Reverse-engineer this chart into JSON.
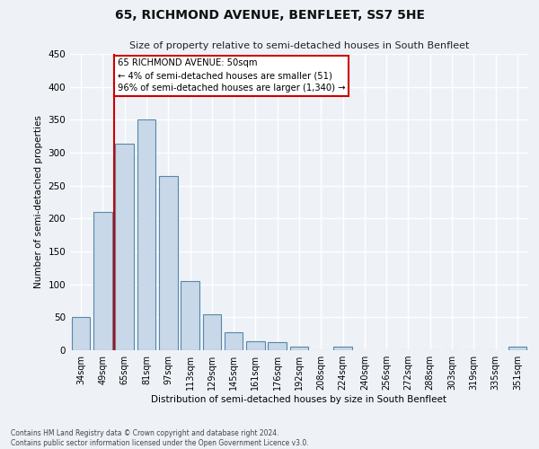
{
  "title": "65, RICHMOND AVENUE, BENFLEET, SS7 5HE",
  "subtitle": "Size of property relative to semi-detached houses in South Benfleet",
  "xlabel": "Distribution of semi-detached houses by size in South Benfleet",
  "ylabel": "Number of semi-detached properties",
  "categories": [
    "34sqm",
    "49sqm",
    "65sqm",
    "81sqm",
    "97sqm",
    "113sqm",
    "129sqm",
    "145sqm",
    "161sqm",
    "176sqm",
    "192sqm",
    "208sqm",
    "224sqm",
    "240sqm",
    "256sqm",
    "272sqm",
    "288sqm",
    "303sqm",
    "319sqm",
    "335sqm",
    "351sqm"
  ],
  "values": [
    51,
    210,
    313,
    350,
    265,
    105,
    54,
    27,
    14,
    12,
    6,
    0,
    5,
    0,
    0,
    0,
    0,
    0,
    0,
    0,
    5
  ],
  "bar_color": "#c8d8e8",
  "bar_edge_color": "#5588aa",
  "vline_x": 1.5,
  "vline_color": "#cc0000",
  "annotation_lines": [
    "65 RICHMOND AVENUE: 50sqm",
    "← 4% of semi-detached houses are smaller (51)",
    "96% of semi-detached houses are larger (1,340) →"
  ],
  "annotation_box_color": "#cc0000",
  "ylim": [
    0,
    450
  ],
  "yticks": [
    0,
    50,
    100,
    150,
    200,
    250,
    300,
    350,
    400,
    450
  ],
  "footer_lines": [
    "Contains HM Land Registry data © Crown copyright and database right 2024.",
    "Contains public sector information licensed under the Open Government Licence v3.0."
  ],
  "bg_color": "#eef2f7",
  "plot_bg_color": "#eef2f7",
  "grid_color": "#ffffff"
}
